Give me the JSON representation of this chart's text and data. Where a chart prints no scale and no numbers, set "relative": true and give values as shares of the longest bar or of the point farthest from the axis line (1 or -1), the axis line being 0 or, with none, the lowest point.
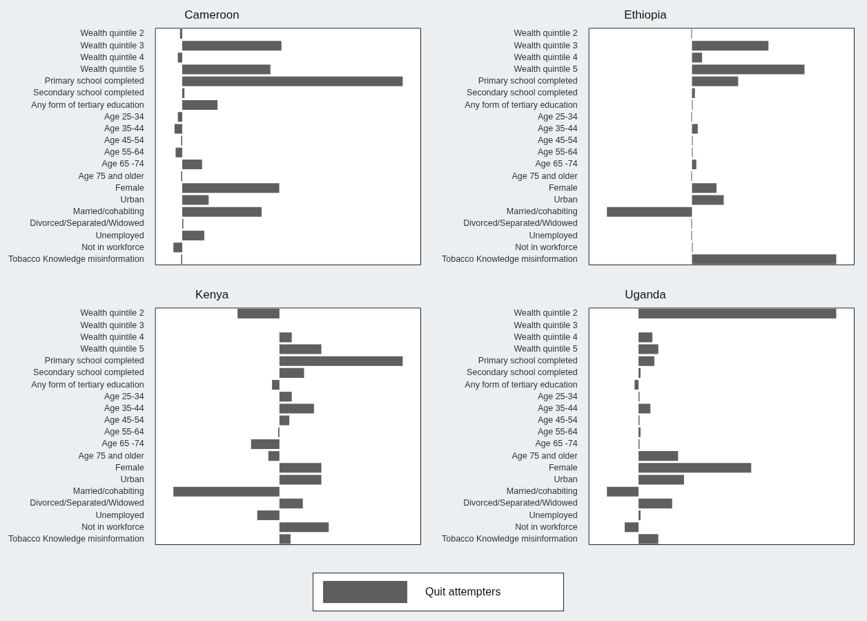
{
  "chart_data": [
    {
      "type": "bar",
      "orientation": "horizontal",
      "relative": true,
      "title": "Cameroon",
      "legend": "bottom",
      "categories": [
        "Wealth quintile 2",
        "Wealth quintile 3",
        "Wealth quintile 4",
        "Wealth quintile 5",
        "Primary school completed",
        "Secondary school completed",
        "Any form of tertiary education",
        "Age 25-34",
        "Age 35-44",
        "Age 45-54",
        "Age 55-64",
        "Age 65 -74",
        "Age 75 and older",
        "Female",
        "Urban",
        "Married/cohabiting",
        "Divorced/Separated/Widowed",
        "Unemployed",
        "Not in workforce",
        "Tobacco Knowledge misinformation"
      ],
      "series": [
        {
          "name": "Quit attempters",
          "color": "#5f5f5f",
          "values": [
            -0.01,
            0.45,
            -0.02,
            0.4,
            1,
            0.01,
            0.16,
            -0.02,
            -0.035,
            -0.005,
            -0.03,
            0.09,
            -0.005,
            0.44,
            0.12,
            0.36,
            0.005,
            0.1,
            -0.04,
            -0.005
          ]
        }
      ]
    },
    {
      "type": "bar",
      "orientation": "horizontal",
      "relative": true,
      "title": "Ethiopia",
      "categories": [
        "Wealth quintile 2",
        "Wealth quintile 3",
        "Wealth quintile 4",
        "Wealth quintile 5",
        "Primary school completed",
        "Secondary school completed",
        "Any form of tertiary education",
        "Age 25-34",
        "Age 35-44",
        "Age 45-54",
        "Age 55-64",
        "Age 65 -74",
        "Age 75 and older",
        "Female",
        "Urban",
        "Married/cohabiting",
        "Divorced/Separated/Widowed",
        "Unemployed",
        "Not in workforce",
        "Tobacco Knowledge misinformation"
      ],
      "series": [
        {
          "color": "#5f5f5f",
          "values": [
            -0.005,
            0.53,
            0.07,
            0.78,
            0.32,
            0.02,
            0.005,
            -0.005,
            0.04,
            0.005,
            0.005,
            0.03,
            -0.005,
            0.17,
            0.22,
            -0.59,
            -0.005,
            -0.005,
            0.005,
            1
          ]
        }
      ]
    },
    {
      "type": "bar",
      "orientation": "horizontal",
      "relative": true,
      "title": "Kenya",
      "categories": [
        "Wealth quintile 2",
        "Wealth quintile 3",
        "Wealth quintile 4",
        "Wealth quintile 5",
        "Primary school completed",
        "Secondary school completed",
        "Any form of tertiary education",
        "Age 25-34",
        "Age 35-44",
        "Age 45-54",
        "Age 55-64",
        "Age 65 -74",
        "Age 75 and older",
        "Female",
        "Urban",
        "Married/cohabiting",
        "Divorced/Separated/Widowed",
        "Unemployed",
        "Not in workforce",
        "Tobacco Knowledge misinformation"
      ],
      "series": [
        {
          "color": "#5f5f5f",
          "values": [
            -0.34,
            0,
            0.1,
            0.34,
            1,
            0.2,
            -0.06,
            0.1,
            0.28,
            0.08,
            -0.01,
            -0.23,
            -0.09,
            0.34,
            0.34,
            -0.86,
            0.19,
            -0.18,
            0.4,
            0.09
          ]
        }
      ]
    },
    {
      "type": "bar",
      "orientation": "horizontal",
      "relative": true,
      "title": "Uganda",
      "categories": [
        "Wealth quintile 2",
        "Wealth quintile 3",
        "Wealth quintile 4",
        "Wealth quintile 5",
        "Primary school completed",
        "Secondary school completed",
        "Any form of tertiary education",
        "Age 25-34",
        "Age 35-44",
        "Age 45-54",
        "Age 55-64",
        "Age 65 -74",
        "Age 75 and older",
        "Female",
        "Urban",
        "Married/cohabiting",
        "Divorced/Separated/Widowed",
        "Unemployed",
        "Not in workforce",
        "Tobacco Knowledge misinformation"
      ],
      "series": [
        {
          "color": "#5f5f5f",
          "values": [
            1,
            0,
            0.07,
            0.1,
            0.08,
            0.01,
            -0.02,
            0.005,
            0.06,
            0.005,
            0.01,
            0.005,
            0.2,
            0.57,
            0.23,
            -0.16,
            0.17,
            0.01,
            -0.07,
            0.1
          ]
        }
      ]
    }
  ]
}
